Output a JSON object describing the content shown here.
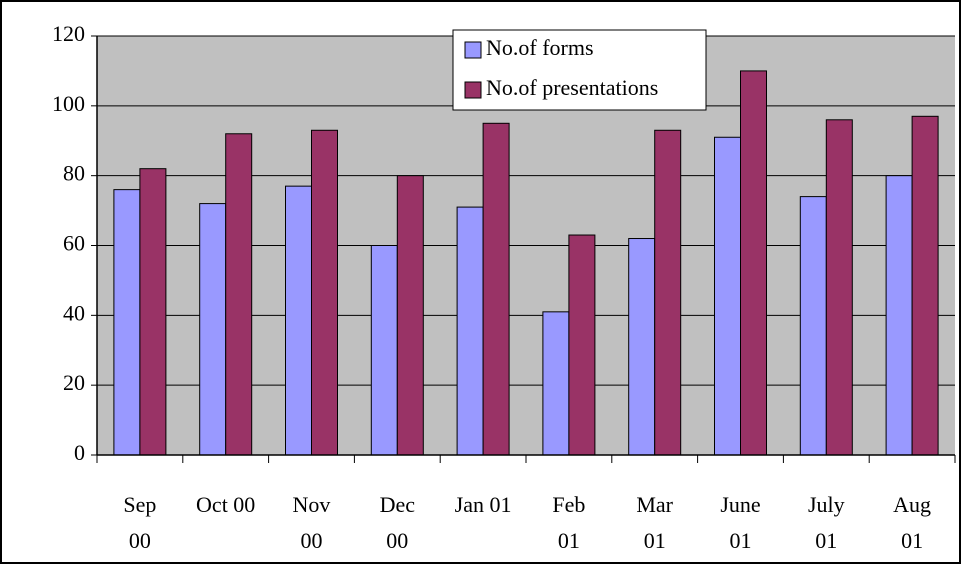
{
  "chart_data": {
    "type": "bar",
    "categories": [
      "Sep 00",
      "Oct 00",
      "Nov 00",
      "Dec 00",
      "Jan 01",
      "Feb 01",
      "Mar 01",
      "June 01",
      "July 01",
      "Aug 01"
    ],
    "series": [
      {
        "name": "No.of forms",
        "color": "#9999ff",
        "values": [
          76,
          72,
          77,
          60,
          71,
          41,
          62,
          91,
          74,
          80
        ]
      },
      {
        "name": "No.of presentations",
        "color": "#993366",
        "values": [
          82,
          92,
          93,
          80,
          95,
          63,
          93,
          110,
          96,
          97
        ]
      }
    ],
    "ylim": [
      0,
      120
    ],
    "yticks": [
      0,
      20,
      40,
      60,
      80,
      100,
      120
    ],
    "grid": true,
    "legend": "top",
    "plot_background": "#c0c0c0"
  }
}
